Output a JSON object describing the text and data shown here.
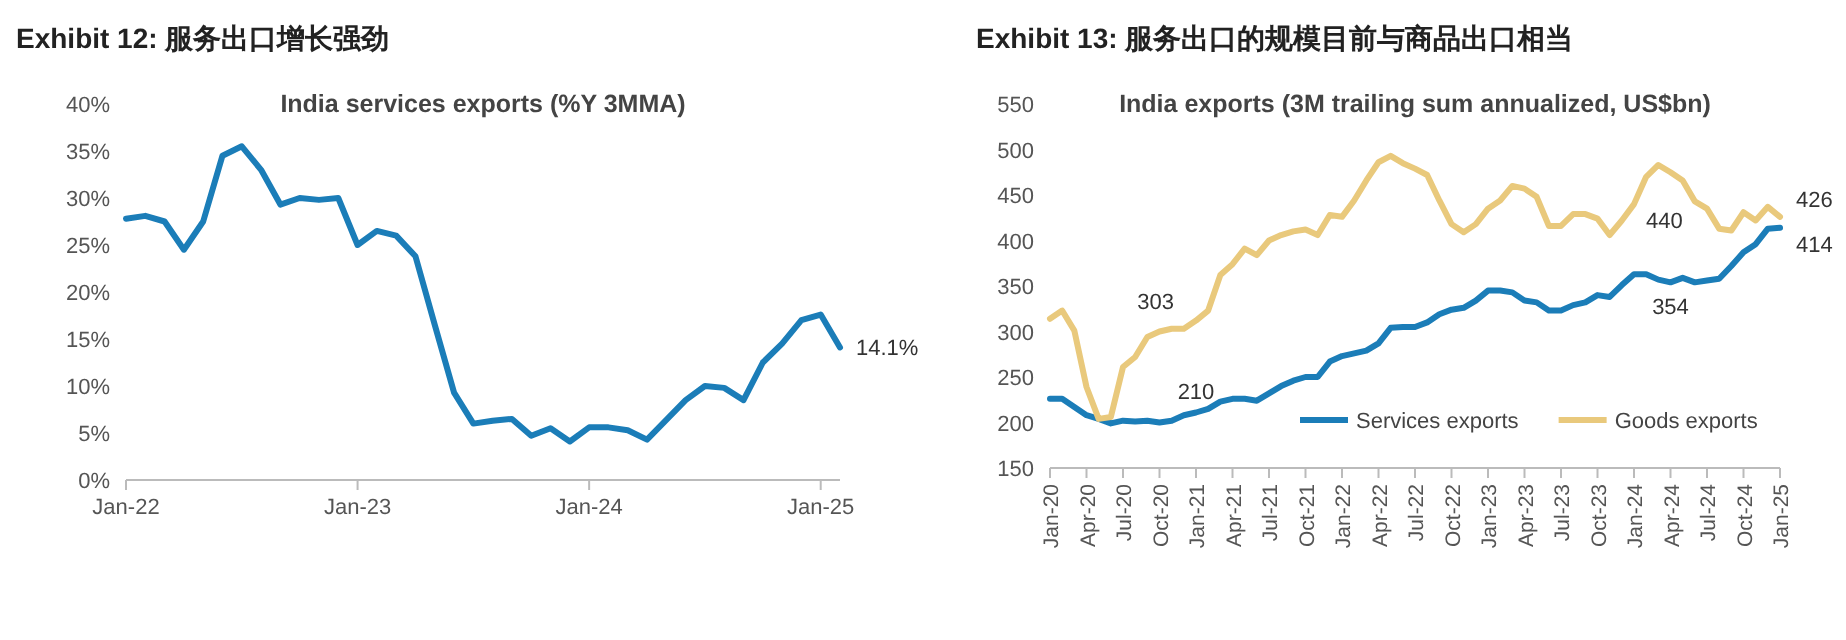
{
  "chart_data": [
    {
      "type": "line",
      "title": "Exhibit 12:  服务出口增长强劲",
      "subtitle": "India services exports (%Y 3MMA)",
      "x": [
        "2022-01",
        "2022-02",
        "2022-03",
        "2022-04",
        "2022-05",
        "2022-06",
        "2022-07",
        "2022-08",
        "2022-09",
        "2022-10",
        "2022-11",
        "2022-12",
        "2023-01",
        "2023-02",
        "2023-03",
        "2023-04",
        "2023-05",
        "2023-06",
        "2023-07",
        "2023-08",
        "2023-09",
        "2023-10",
        "2023-11",
        "2023-12",
        "2024-01",
        "2024-02",
        "2024-03",
        "2024-04",
        "2024-05",
        "2024-06",
        "2024-07",
        "2024-08",
        "2024-09",
        "2024-10",
        "2024-11",
        "2024-12",
        "2025-01",
        "2025-02"
      ],
      "series": [
        {
          "color": "#1b7db8",
          "values": [
            27.8,
            28.1,
            27.5,
            24.5,
            27.5,
            34.5,
            35.5,
            33,
            29.3,
            30,
            29.8,
            30,
            25,
            26.5,
            26,
            23.8,
            16.5,
            9.3,
            6,
            6.3,
            6.5,
            4.7,
            5.5,
            4.1,
            5.6,
            5.6,
            5.3,
            4.3,
            6.4,
            8.5,
            10,
            9.8,
            8.5,
            12.5,
            14.5,
            17,
            17.6,
            14.1
          ]
        }
      ],
      "xlim": [
        "2022-01",
        "2025-02"
      ],
      "xticks": [
        {
          "value": "2022-01",
          "label": "Jan-22"
        },
        {
          "value": "2023-01",
          "label": "Jan-23"
        },
        {
          "value": "2024-01",
          "label": "Jan-24"
        },
        {
          "value": "2025-01",
          "label": "Jan-25"
        }
      ],
      "ylim": [
        0,
        40
      ],
      "yticks": [
        {
          "value": 0,
          "label": "0%"
        },
        {
          "value": 5,
          "label": "5%"
        },
        {
          "value": 10,
          "label": "10%"
        },
        {
          "value": 15,
          "label": "15%"
        },
        {
          "value": 20,
          "label": "20%"
        },
        {
          "value": 25,
          "label": "25%"
        },
        {
          "value": 30,
          "label": "30%"
        },
        {
          "value": 35,
          "label": "35%"
        },
        {
          "value": 40,
          "label": "40%"
        }
      ],
      "annotations": [
        {
          "text": "14.1%",
          "x": "2025-02",
          "y": 14.1
        }
      ]
    },
    {
      "type": "line",
      "title": "Exhibit 13:  服务出口的规模目前与商品出口相当",
      "subtitle": "India exports (3M trailing sum annualized, US$bn)",
      "x": [
        "2020-01",
        "2020-02",
        "2020-03",
        "2020-04",
        "2020-05",
        "2020-06",
        "2020-07",
        "2020-08",
        "2020-09",
        "2020-10",
        "2020-11",
        "2020-12",
        "2021-01",
        "2021-02",
        "2021-03",
        "2021-04",
        "2021-05",
        "2021-06",
        "2021-07",
        "2021-08",
        "2021-09",
        "2021-10",
        "2021-11",
        "2021-12",
        "2022-01",
        "2022-02",
        "2022-03",
        "2022-04",
        "2022-05",
        "2022-06",
        "2022-07",
        "2022-08",
        "2022-09",
        "2022-10",
        "2022-11",
        "2022-12",
        "2023-01",
        "2023-02",
        "2023-03",
        "2023-04",
        "2023-05",
        "2023-06",
        "2023-07",
        "2023-08",
        "2023-09",
        "2023-10",
        "2023-11",
        "2023-12",
        "2024-01",
        "2024-02",
        "2024-03",
        "2024-04",
        "2024-05",
        "2024-06",
        "2024-07",
        "2024-08",
        "2024-09",
        "2024-10",
        "2024-11",
        "2024-12",
        "2025-01"
      ],
      "series": [
        {
          "name": "Services exports",
          "color": "#1b7db8",
          "values": [
            226,
            226,
            217,
            208,
            204,
            199,
            202,
            201,
            202,
            200,
            202,
            208,
            211,
            215,
            223,
            226,
            226,
            224,
            232,
            240,
            246,
            250,
            250,
            267,
            273,
            276,
            279,
            287,
            304,
            305,
            305,
            310,
            319,
            324,
            326,
            334,
            345,
            345,
            343,
            334,
            332,
            323,
            323,
            329,
            332,
            340,
            338,
            351,
            363,
            363,
            357,
            354,
            359,
            354,
            356,
            358,
            372,
            387,
            396,
            413,
            414
          ]
        },
        {
          "name": "Goods exports",
          "color": "#e9c97c",
          "values": [
            314,
            323,
            301,
            239,
            204,
            206,
            261,
            272,
            294,
            300,
            303,
            303,
            312,
            323,
            362,
            374,
            391,
            384,
            400,
            406,
            410,
            412,
            406,
            428,
            426,
            444,
            466,
            486,
            493,
            485,
            479,
            472,
            444,
            418,
            409,
            418,
            435,
            444,
            460,
            457,
            448,
            416,
            416,
            429,
            429,
            424,
            406,
            422,
            440,
            470,
            483,
            475,
            466,
            443,
            435,
            413,
            411,
            431,
            422,
            437,
            426
          ]
        }
      ],
      "xlim": [
        "2020-01",
        "2025-01"
      ],
      "xticks": [
        {
          "value": "2020-01",
          "label": "Jan-20"
        },
        {
          "value": "2020-04",
          "label": "Apr-20"
        },
        {
          "value": "2020-07",
          "label": "Jul-20"
        },
        {
          "value": "2020-10",
          "label": "Oct-20"
        },
        {
          "value": "2021-01",
          "label": "Jan-21"
        },
        {
          "value": "2021-04",
          "label": "Apr-21"
        },
        {
          "value": "2021-07",
          "label": "Jul-21"
        },
        {
          "value": "2021-10",
          "label": "Oct-21"
        },
        {
          "value": "2022-01",
          "label": "Jan-22"
        },
        {
          "value": "2022-04",
          "label": "Apr-22"
        },
        {
          "value": "2022-07",
          "label": "Jul-22"
        },
        {
          "value": "2022-10",
          "label": "Oct-22"
        },
        {
          "value": "2023-01",
          "label": "Jan-23"
        },
        {
          "value": "2023-04",
          "label": "Apr-23"
        },
        {
          "value": "2023-07",
          "label": "Jul-23"
        },
        {
          "value": "2023-10",
          "label": "Oct-23"
        },
        {
          "value": "2024-01",
          "label": "Jan-24"
        },
        {
          "value": "2024-04",
          "label": "Apr-24"
        },
        {
          "value": "2024-07",
          "label": "Jul-24"
        },
        {
          "value": "2024-10",
          "label": "Oct-24"
        },
        {
          "value": "2025-01",
          "label": "Jan-25"
        }
      ],
      "ylim": [
        150,
        550
      ],
      "yticks": [
        150,
        200,
        250,
        300,
        350,
        400,
        450,
        500,
        550
      ],
      "legend": "bottom right",
      "annotations": [
        {
          "text": "303",
          "x": "2020-11",
          "y": 303
        },
        {
          "text": "210",
          "x": "2021-01",
          "y": 210
        },
        {
          "text": "354",
          "x": "2024-04",
          "y": 354
        },
        {
          "text": "440",
          "x": "2024-06",
          "y": 440
        },
        {
          "text": "426",
          "x": "2025-01",
          "y": 426
        },
        {
          "text": "414",
          "x": "2025-01",
          "y": 414
        }
      ]
    }
  ]
}
